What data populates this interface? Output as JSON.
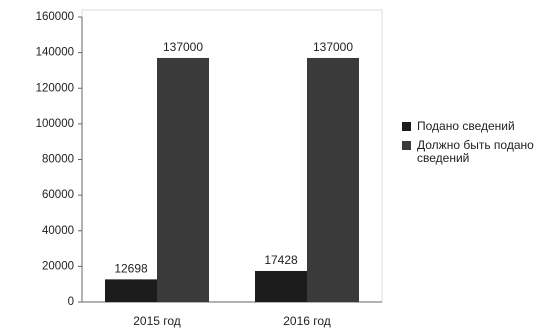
{
  "chart_data": {
    "type": "bar",
    "categories": [
      "2015 год",
      "2016 год"
    ],
    "series": [
      {
        "name": "Подано сведений",
        "color": "#1c1c1c",
        "values": [
          12698,
          17428
        ]
      },
      {
        "name": "Должно быть подано  сведений",
        "color": "#3a3a3a",
        "values": [
          137000,
          137000
        ]
      }
    ],
    "ylim": [
      0,
      160000
    ],
    "yticks": [
      0,
      20000,
      40000,
      60000,
      80000,
      100000,
      120000,
      140000,
      160000
    ],
    "legend": "right"
  }
}
